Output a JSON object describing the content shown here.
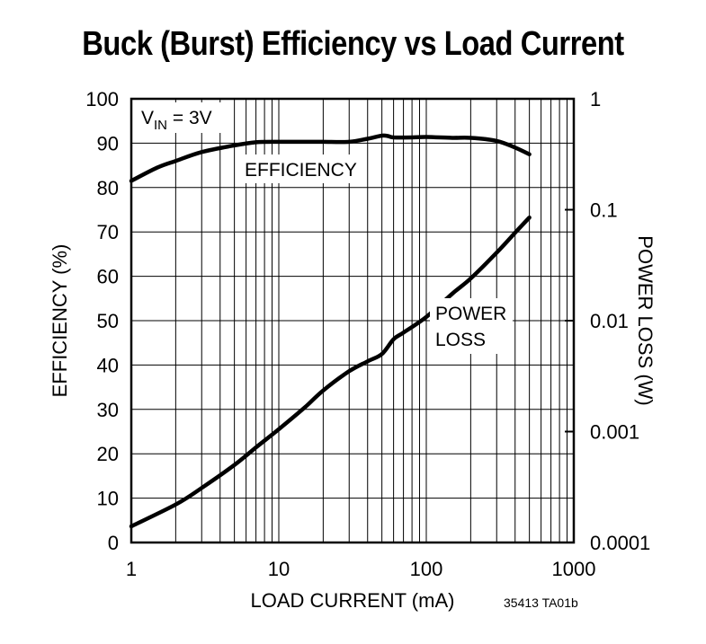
{
  "chart_data": {
    "type": "line",
    "title": "Buck (Burst) Efficiency vs Load Current",
    "xlabel": "LOAD CURRENT (mA)",
    "ylabel_left": "EFFICIENCY (%)",
    "ylabel_right": "POWER LOSS (W)",
    "x_scale": "log",
    "xlim": [
      1,
      1000
    ],
    "x_ticks": [
      "1",
      "10",
      "100",
      "1000"
    ],
    "ylim_left": [
      0,
      100
    ],
    "y_ticks_left": [
      "0",
      "10",
      "20",
      "30",
      "40",
      "50",
      "60",
      "70",
      "80",
      "90",
      "100"
    ],
    "y_scale_right": "log",
    "ylim_right": [
      0.0001,
      1
    ],
    "y_ticks_right": [
      "0.0001",
      "0.001",
      "0.01",
      "0.1",
      "1"
    ],
    "grid": true,
    "condition_label": {
      "main": "V",
      "sub": "IN",
      "rest": " = 3V"
    },
    "footnote": "35413 TA01b",
    "series": [
      {
        "name": "EFFICIENCY",
        "axis": "left",
        "x": [
          1,
          1.5,
          2,
          3,
          5,
          7,
          10,
          15,
          20,
          30,
          40,
          50,
          55,
          60,
          80,
          100,
          150,
          200,
          300,
          400,
          500
        ],
        "y": [
          81.5,
          84.5,
          86,
          88,
          89.5,
          90.2,
          90.3,
          90.3,
          90.3,
          90.3,
          91,
          91.7,
          91.6,
          91.3,
          91.3,
          91.4,
          91.2,
          91.2,
          90.5,
          89,
          87.5
        ]
      },
      {
        "name": "POWER LOSS",
        "axis": "right",
        "x": [
          1,
          2,
          3,
          5,
          7,
          10,
          15,
          20,
          30,
          40,
          50,
          60,
          70,
          100,
          150,
          200,
          300,
          400,
          500
        ],
        "y": [
          0.00014,
          0.00022,
          0.00031,
          0.0005,
          0.00072,
          0.00105,
          0.00165,
          0.00235,
          0.0035,
          0.0043,
          0.005,
          0.0068,
          0.0078,
          0.0108,
          0.0175,
          0.024,
          0.041,
          0.062,
          0.085
        ]
      }
    ],
    "annotations": [
      {
        "text": "EFFICIENCY",
        "series": "EFFICIENCY"
      },
      {
        "text": "POWER",
        "series": "POWER LOSS"
      },
      {
        "text": "LOSS",
        "series": "POWER LOSS"
      }
    ]
  }
}
